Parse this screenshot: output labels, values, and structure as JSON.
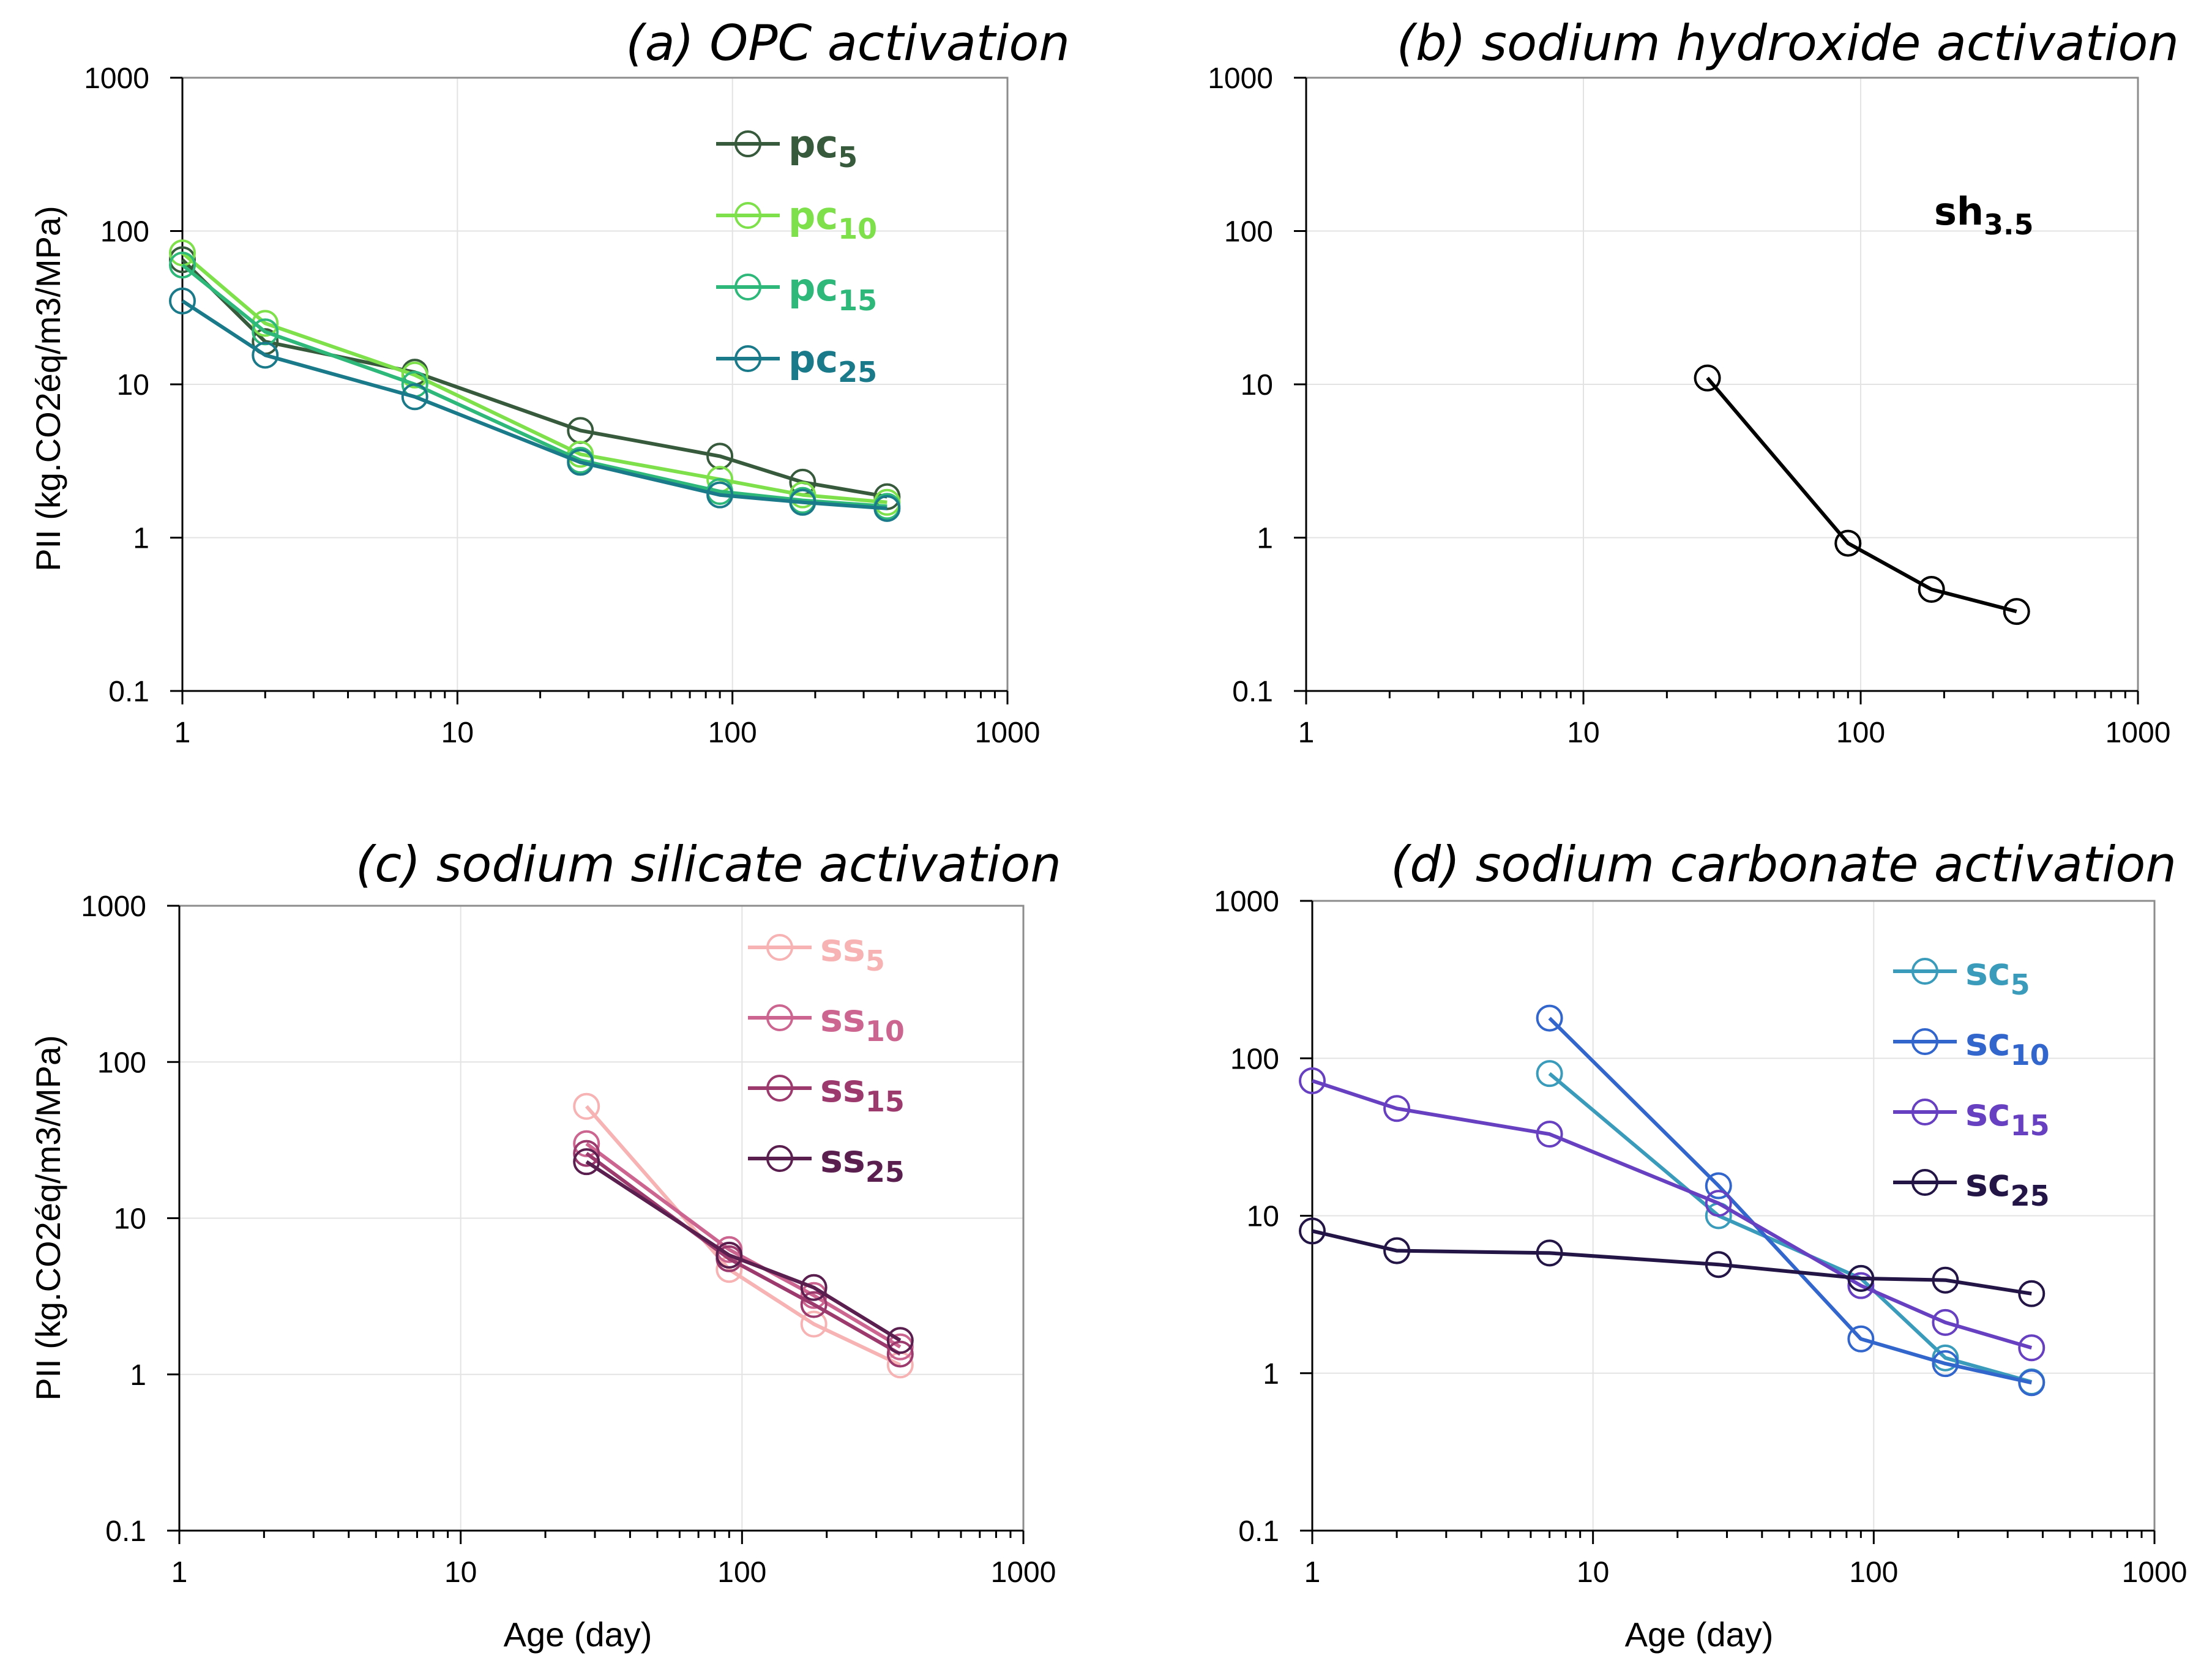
{
  "chart_data": [
    {
      "id": "a",
      "type": "line",
      "title": "(a) OPC activation",
      "xlabel": "",
      "ylabel": "PII (kg.CO2éq/m3/MPa)",
      "xscale": "log",
      "yscale": "log",
      "xlim": [
        1,
        1000
      ],
      "ylim": [
        0.1,
        1000
      ],
      "x_ticks": [
        "1",
        "10",
        "100",
        "1000"
      ],
      "y_ticks": [
        "0.1",
        "1",
        "10",
        "100",
        "1000"
      ],
      "legend_position": "top-right",
      "series": [
        {
          "base": "pc",
          "sub": "5",
          "color": "#375a3c",
          "x": [
            1,
            2,
            7,
            28,
            90,
            180,
            365
          ],
          "y": [
            65,
            19,
            12,
            5,
            3.4,
            2.3,
            1.85
          ]
        },
        {
          "base": "pc",
          "sub": "10",
          "color": "#7ee04a",
          "x": [
            1,
            2,
            7,
            28,
            90,
            180,
            365
          ],
          "y": [
            72,
            25,
            11.5,
            3.5,
            2.4,
            1.9,
            1.7
          ]
        },
        {
          "base": "pc",
          "sub": "15",
          "color": "#2eb87a",
          "x": [
            1,
            2,
            7,
            28,
            90,
            180,
            365
          ],
          "y": [
            60,
            22,
            10,
            3.2,
            2.0,
            1.75,
            1.6
          ]
        },
        {
          "base": "pc",
          "sub": "25",
          "color": "#1a7a8a",
          "x": [
            1,
            2,
            7,
            28,
            90,
            180,
            365
          ],
          "y": [
            35,
            15.5,
            8.3,
            3.1,
            1.9,
            1.7,
            1.55
          ]
        }
      ]
    },
    {
      "id": "b",
      "type": "line",
      "title": "(b) sodium hydroxide activation",
      "xlabel": "",
      "ylabel": "",
      "xscale": "log",
      "yscale": "log",
      "xlim": [
        1,
        1000
      ],
      "ylim": [
        0.1,
        1000
      ],
      "x_ticks": [
        "1",
        "10",
        "100",
        "1000"
      ],
      "y_ticks": [
        "0.1",
        "1",
        "10",
        "100",
        "1000"
      ],
      "legend_position": "top-right",
      "series": [
        {
          "base": "sh",
          "sub": "3.5",
          "color": "#000000",
          "x": [
            28,
            90,
            180,
            365
          ],
          "y": [
            11,
            0.92,
            0.46,
            0.33
          ]
        }
      ]
    },
    {
      "id": "c",
      "type": "line",
      "title": "(c) sodium silicate activation",
      "xlabel": "Age (day)",
      "ylabel": "PII (kg.CO2éq/m3/MPa)",
      "xscale": "log",
      "yscale": "log",
      "xlim": [
        1,
        1000
      ],
      "ylim": [
        0.1,
        1000
      ],
      "x_ticks": [
        "1",
        "10",
        "100",
        "1000"
      ],
      "y_ticks": [
        "0.1",
        "1",
        "10",
        "100",
        "1000"
      ],
      "legend_position": "top-right",
      "series": [
        {
          "base": "ss",
          "sub": "5",
          "color": "#f7b3b3",
          "x": [
            28,
            90,
            180,
            365
          ],
          "y": [
            52,
            4.7,
            2.1,
            1.15
          ]
        },
        {
          "base": "ss",
          "sub": "10",
          "color": "#cc6690",
          "x": [
            28,
            90,
            180,
            365
          ],
          "y": [
            30,
            6.3,
            3.2,
            1.5
          ]
        },
        {
          "base": "ss",
          "sub": "15",
          "color": "#9c3a6e",
          "x": [
            28,
            90,
            180,
            365
          ],
          "y": [
            26,
            5.5,
            2.8,
            1.35
          ]
        },
        {
          "base": "ss",
          "sub": "25",
          "color": "#5a1f4f",
          "x": [
            28,
            90,
            180,
            365
          ],
          "y": [
            23,
            5.8,
            3.6,
            1.65
          ]
        }
      ]
    },
    {
      "id": "d",
      "type": "line",
      "title": "(d) sodium carbonate activation",
      "xlabel": "Age (day)",
      "ylabel": "",
      "xscale": "log",
      "yscale": "log",
      "xlim": [
        1,
        1000
      ],
      "ylim": [
        0.1,
        1000
      ],
      "x_ticks": [
        "1",
        "10",
        "100",
        "1000"
      ],
      "y_ticks": [
        "0.1",
        "1",
        "10",
        "100",
        "1000"
      ],
      "legend_position": "top-right",
      "series": [
        {
          "base": "sc",
          "sub": "5",
          "color": "#3a9cba",
          "x": [
            7,
            28,
            90,
            180,
            365
          ],
          "y": [
            80,
            10,
            4.0,
            1.25,
            0.88
          ]
        },
        {
          "base": "sc",
          "sub": "10",
          "color": "#3366cc",
          "x": [
            7,
            28,
            90,
            180,
            365
          ],
          "y": [
            180,
            15.5,
            1.65,
            1.15,
            0.87
          ]
        },
        {
          "base": "sc",
          "sub": "15",
          "color": "#6640c0",
          "x": [
            1,
            2,
            7,
            28,
            90,
            180,
            365
          ],
          "y": [
            72,
            48,
            33,
            12,
            3.6,
            2.1,
            1.45
          ]
        },
        {
          "base": "sc",
          "sub": "25",
          "color": "#231545",
          "x": [
            1,
            2,
            7,
            28,
            90,
            180,
            365
          ],
          "y": [
            8.0,
            6.0,
            5.8,
            4.9,
            4.0,
            3.9,
            3.2
          ]
        }
      ]
    }
  ]
}
